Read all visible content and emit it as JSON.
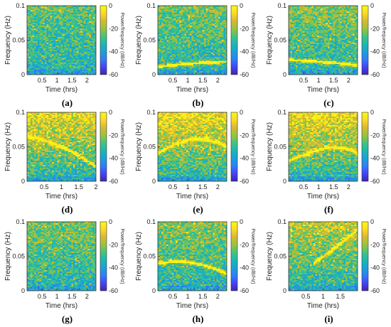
{
  "chart_data": [
    {
      "type": "heatmap",
      "caption": "(a)",
      "xlabel": "Time (hrs)",
      "ylabel": "Frequency (Hz)",
      "colorbar_label": "Power/frequency (dB/Hz)",
      "xlim": [
        0,
        2.3
      ],
      "ylim": [
        0,
        0.1
      ],
      "xticks": [
        "0.5",
        "1",
        "1.5",
        "2"
      ],
      "yticks": [
        "0",
        "0.05",
        "0.1"
      ],
      "clim": [
        -60,
        0
      ],
      "cbticks": [
        "0",
        "-20",
        "-40",
        "-60"
      ],
      "track": null,
      "density": 0.16
    },
    {
      "type": "heatmap",
      "caption": "(b)",
      "xlabel": "Time (hrs)",
      "ylabel": "Frequency (Hz)",
      "colorbar_label": "Power/frequency (dB/Hz)",
      "xlim": [
        0,
        2.3
      ],
      "ylim": [
        0,
        0.1
      ],
      "xticks": [
        "0.5",
        "1",
        "1.5",
        "2"
      ],
      "yticks": [
        "0",
        "0.05",
        "0.1"
      ],
      "clim": [
        -60,
        0
      ],
      "cbticks": [
        "0",
        "-20",
        "-40",
        "-60"
      ],
      "track": {
        "t": [
          0,
          0.5,
          1,
          1.5,
          2,
          2.3
        ],
        "f": [
          0.012,
          0.0145,
          0.0165,
          0.018,
          0.019,
          0.0195
        ]
      },
      "density": 0.2
    },
    {
      "type": "heatmap",
      "caption": "(c)",
      "xlabel": "Time (hrs)",
      "ylabel": "Frequency (Hz)",
      "colorbar_label": "Power/frequency (dB/Hz)",
      "xlim": [
        0,
        2.3
      ],
      "ylim": [
        0,
        0.1
      ],
      "xticks": [
        "0.5",
        "1",
        "1.5",
        "2"
      ],
      "yticks": [
        "0",
        "0.05",
        "0.1"
      ],
      "clim": [
        -60,
        0
      ],
      "cbticks": [
        "0",
        "-20",
        "-40",
        "-60"
      ],
      "track": {
        "t": [
          0,
          0.5,
          1,
          1.5,
          2,
          2.3
        ],
        "f": [
          0.022,
          0.021,
          0.0195,
          0.018,
          0.016,
          0.014
        ]
      },
      "density": 0.22
    },
    {
      "type": "heatmap",
      "caption": "(d)",
      "xlabel": "Time (hrs)",
      "ylabel": "Frequency (Hz)",
      "colorbar_label": "Power/frequency (dB/Hz)",
      "xlim": [
        0,
        2.0
      ],
      "ylim": [
        0,
        0.1
      ],
      "xticks": [
        "0.5",
        "1",
        "1.5",
        "2"
      ],
      "yticks": [
        "0",
        "0.05",
        "0.1"
      ],
      "clim": [
        -60,
        0
      ],
      "cbticks": [
        "0",
        "-20",
        "-40",
        "-60"
      ],
      "track": {
        "t": [
          0,
          0.5,
          1,
          1.5,
          2.0
        ],
        "f": [
          0.066,
          0.06,
          0.05,
          0.038,
          0.022
        ]
      },
      "density": 0.42
    },
    {
      "type": "heatmap",
      "caption": "(e)",
      "xlabel": "Time (hrs)",
      "ylabel": "Frequency (Hz)",
      "colorbar_label": "Power/frequency (dB/Hz)",
      "xlim": [
        0,
        2.3
      ],
      "ylim": [
        0,
        0.1
      ],
      "xticks": [
        "0.5",
        "1",
        "1.5",
        "2"
      ],
      "yticks": [
        "0",
        "0.05",
        "0.1"
      ],
      "clim": [
        -60,
        0
      ],
      "cbticks": [
        "0",
        "-20",
        "-40",
        "-60"
      ],
      "track": {
        "t": [
          0,
          0.5,
          1,
          1.3,
          1.7,
          2,
          2.3
        ],
        "f": [
          0.04,
          0.053,
          0.06,
          0.062,
          0.061,
          0.056,
          0.05
        ]
      },
      "density": 0.45
    },
    {
      "type": "heatmap",
      "caption": "(f)",
      "xlabel": "Time (hrs)",
      "ylabel": "Frequency (Hz)",
      "colorbar_label": "Power/frequency (dB/Hz)",
      "xlim": [
        0,
        2.3
      ],
      "ylim": [
        0,
        0.1
      ],
      "xticks": [
        "0.5",
        "1",
        "1.5",
        "2"
      ],
      "yticks": [
        "0",
        "0.05",
        "0.1"
      ],
      "clim": [
        -60,
        0
      ],
      "cbticks": [
        "0",
        "-20",
        "-40",
        "-60"
      ],
      "track": {
        "t": [
          0,
          0.5,
          1,
          1.4,
          1.8,
          2.1,
          2.3
        ],
        "f": [
          0.03,
          0.039,
          0.046,
          0.05,
          0.049,
          0.045,
          0.04
        ]
      },
      "density": 0.45
    },
    {
      "type": "heatmap",
      "caption": "(g)",
      "xlabel": "Time (hrs)",
      "ylabel": "Frequency (Hz)",
      "colorbar_label": "Power/frequency (dB/Hz)",
      "xlim": [
        0,
        2.3
      ],
      "ylim": [
        0,
        0.1
      ],
      "xticks": [
        "0.5",
        "1",
        "1.5",
        "2"
      ],
      "yticks": [
        "0",
        "0.05",
        "0.1"
      ],
      "clim": [
        -60,
        0
      ],
      "cbticks": [
        "0",
        "-20",
        "-40",
        "-60"
      ],
      "track": null,
      "density": 0.2
    },
    {
      "type": "heatmap",
      "caption": "(h)",
      "xlabel": "Time (hrs)",
      "ylabel": "Frequency (Hz)",
      "colorbar_label": "Power/frequency (dB/Hz)",
      "xlim": [
        0,
        2.3
      ],
      "ylim": [
        0,
        0.1
      ],
      "xticks": [
        "0.5",
        "1",
        "1.5",
        "2"
      ],
      "yticks": [
        "0",
        "0.05",
        "0.1"
      ],
      "clim": [
        -60,
        0
      ],
      "cbticks": [
        "0",
        "-20",
        "-40",
        "-60"
      ],
      "track": {
        "t": [
          0,
          0.5,
          1,
          1.5,
          2,
          2.3
        ],
        "f": [
          0.04,
          0.043,
          0.042,
          0.038,
          0.031,
          0.025
        ]
      },
      "density": 0.22
    },
    {
      "type": "heatmap",
      "caption": "(i)",
      "xlabel": "Time (hrs)",
      "ylabel": "Frequency (Hz)",
      "colorbar_label": "Power/frequency (dB/Hz)",
      "xlim": [
        0,
        2.0
      ],
      "ylim": [
        0,
        0.1
      ],
      "xticks": [
        "0.5",
        "1",
        "1.5"
      ],
      "yticks": [
        "0",
        "0.05",
        "0.1"
      ],
      "clim": [
        -60,
        0
      ],
      "cbticks": [
        "0",
        "-20",
        "-40",
        "-60"
      ],
      "track": {
        "t": [
          0.7,
          1,
          1.4,
          1.8,
          2.0
        ],
        "f": [
          0.04,
          0.05,
          0.065,
          0.08,
          0.09
        ]
      },
      "density": 0.32
    }
  ],
  "colormap": [
    "#3e26a8",
    "#4743f8",
    "#2f7ffa",
    "#1aa1d6",
    "#1cb8b2",
    "#45c37d",
    "#9ac33c",
    "#d6b933",
    "#fdd924",
    "#f9fb0e"
  ]
}
